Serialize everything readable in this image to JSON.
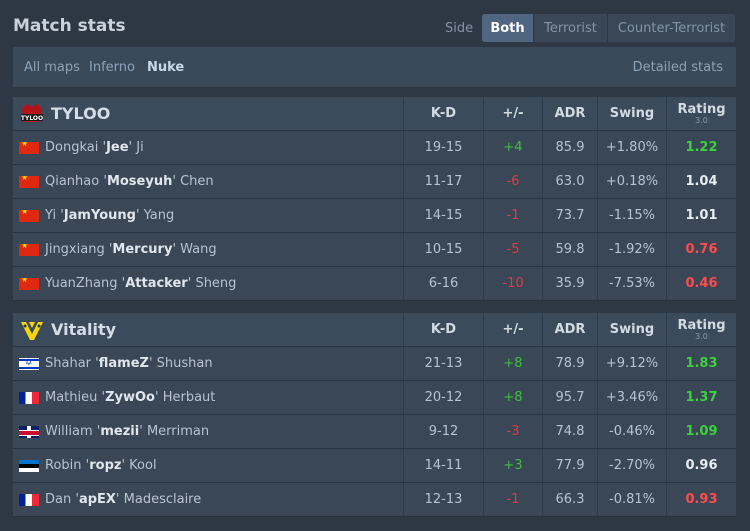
{
  "header": {
    "title": "Match stats",
    "side_label": "Side",
    "side_options": [
      "Both",
      "Terrorist",
      "Counter-Terrorist"
    ],
    "side_active": "Both"
  },
  "maps": {
    "items": [
      "All maps",
      "Inferno",
      "Nuke"
    ],
    "active": "Nuke",
    "details_link": "Detailed stats"
  },
  "columns": {
    "kd": "K-D",
    "plusminus": "+/-",
    "adr": "ADR",
    "swing": "Swing",
    "rating": "Rating",
    "rating_version": "3.0"
  },
  "teams": [
    {
      "name": "TYLOO",
      "logo": "tyloo-logo-icon",
      "players": [
        {
          "flag": "cn",
          "first": "Dongkai",
          "nick": "Jee",
          "last": "Ji",
          "kd": "19-15",
          "pm": "+4",
          "adr": "85.9",
          "swing": "+1.80%",
          "rating": "1.22"
        },
        {
          "flag": "cn",
          "first": "Qianhao",
          "nick": "Moseyuh",
          "last": "Chen",
          "kd": "11-17",
          "pm": "-6",
          "adr": "63.0",
          "swing": "+0.18%",
          "rating": "1.04"
        },
        {
          "flag": "cn",
          "first": "Yi",
          "nick": "JamYoung",
          "last": "Yang",
          "kd": "14-15",
          "pm": "-1",
          "adr": "73.7",
          "swing": "-1.15%",
          "rating": "1.01"
        },
        {
          "flag": "cn",
          "first": "Jingxiang",
          "nick": "Mercury",
          "last": "Wang",
          "kd": "10-15",
          "pm": "-5",
          "adr": "59.8",
          "swing": "-1.92%",
          "rating": "0.76"
        },
        {
          "flag": "cn",
          "first": "YuanZhang",
          "nick": "Attacker",
          "last": "Sheng",
          "kd": "6-16",
          "pm": "-10",
          "adr": "35.9",
          "swing": "-7.53%",
          "rating": "0.46"
        }
      ]
    },
    {
      "name": "Vitality",
      "logo": "vitality-logo-icon",
      "players": [
        {
          "flag": "il",
          "first": "Shahar",
          "nick": "flameZ",
          "last": "Shushan",
          "kd": "21-13",
          "pm": "+8",
          "adr": "78.9",
          "swing": "+9.12%",
          "rating": "1.83"
        },
        {
          "flag": "fr",
          "first": "Mathieu",
          "nick": "ZywOo",
          "last": "Herbaut",
          "kd": "20-12",
          "pm": "+8",
          "adr": "95.7",
          "swing": "+3.46%",
          "rating": "1.37"
        },
        {
          "flag": "gb",
          "first": "William",
          "nick": "mezii",
          "last": "Merriman",
          "kd": "9-12",
          "pm": "-3",
          "adr": "74.8",
          "swing": "-0.46%",
          "rating": "1.09"
        },
        {
          "flag": "ee",
          "first": "Robin",
          "nick": "ropz",
          "last": "Kool",
          "kd": "14-11",
          "pm": "+3",
          "adr": "77.9",
          "swing": "-2.70%",
          "rating": "0.96"
        },
        {
          "flag": "fr",
          "first": "Dan",
          "nick": "apEX",
          "last": "Madesclaire",
          "kd": "12-13",
          "pm": "-1",
          "adr": "66.3",
          "swing": "-0.81%",
          "rating": "0.93"
        }
      ]
    }
  ],
  "colors": {
    "positive": "#3dbf3d",
    "negative": "#e03c3c",
    "rating_good": "#3dd13d",
    "rating_bad": "#ff4b4b"
  }
}
